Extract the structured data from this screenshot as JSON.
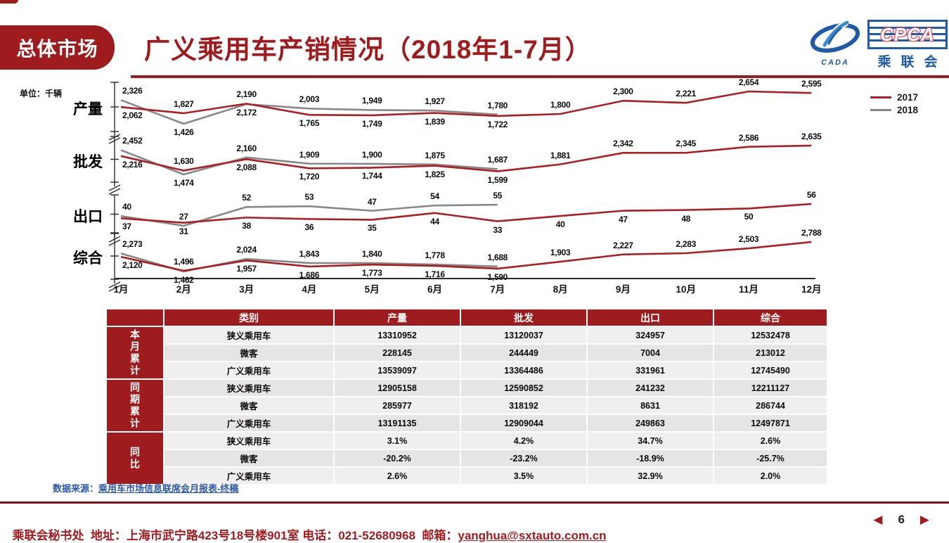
{
  "colors": {
    "brand": "#9E1B1E",
    "line_2017": "#AB1F24",
    "line_2018": "#878787",
    "link_blue": "#2B57A5",
    "logo_blue": "#1E5AA8"
  },
  "header": {
    "badge": "总体市场",
    "title": "广义乘用车产销情况（2018年1-7月）",
    "logo": {
      "cada": "CADA",
      "cpca": "CPCA",
      "cpca_cn": "乘联会"
    }
  },
  "chart_section": {
    "unit_label": "单位：千辆",
    "months": [
      "1月",
      "2月",
      "3月",
      "4月",
      "5月",
      "6月",
      "7月",
      "8月",
      "9月",
      "10月",
      "11月",
      "12月"
    ],
    "legend": [
      {
        "label": "2017"
      },
      {
        "label": "2018"
      }
    ]
  },
  "chart_data": [
    {
      "type": "line",
      "name": "产量",
      "unit": "千辆",
      "categories": [
        "1月",
        "2月",
        "3月",
        "4月",
        "5月",
        "6月",
        "7月",
        "8月",
        "9月",
        "10月",
        "11月",
        "12月"
      ],
      "series": [
        {
          "name": "2017",
          "values": [
            2062,
            1827,
            2190,
            1765,
            1749,
            1839,
            1722,
            1800,
            2300,
            2221,
            2654,
            2595
          ],
          "label_sides": [
            "below",
            "above",
            "above",
            "below",
            "below",
            "below",
            "below",
            "above",
            "above",
            "above",
            "above",
            "above"
          ]
        },
        {
          "name": "2018",
          "values": [
            2326,
            1426,
            2172,
            2003,
            1949,
            1927,
            1780
          ],
          "label_sides": [
            "above",
            "below",
            "below",
            "above",
            "above",
            "above",
            "above"
          ]
        }
      ]
    },
    {
      "type": "line",
      "name": "批发",
      "unit": "千辆",
      "categories": [
        "1月",
        "2月",
        "3月",
        "4月",
        "5月",
        "6月",
        "7月",
        "8月",
        "9月",
        "10月",
        "11月",
        "12月"
      ],
      "series": [
        {
          "name": "2017",
          "values": [
            2216,
            1630,
            2088,
            1720,
            1744,
            1825,
            1599,
            1881,
            2342,
            2345,
            2586,
            2635
          ],
          "label_sides": [
            "below",
            "above",
            "below",
            "below",
            "below",
            "below",
            "below",
            "above",
            "above",
            "above",
            "above",
            "above"
          ]
        },
        {
          "name": "2018",
          "values": [
            2452,
            1474,
            2160,
            1909,
            1900,
            1875,
            1687
          ],
          "label_sides": [
            "above",
            "below",
            "above",
            "above",
            "above",
            "above",
            "above"
          ]
        }
      ]
    },
    {
      "type": "line",
      "name": "出口",
      "unit": "千辆",
      "categories": [
        "1月",
        "2月",
        "3月",
        "4月",
        "5月",
        "6月",
        "7月",
        "8月",
        "9月",
        "10月",
        "11月",
        "12月"
      ],
      "series": [
        {
          "name": "2017",
          "values": [
            37,
            31,
            38,
            36,
            35,
            44,
            33,
            40,
            47,
            48,
            50,
            56
          ],
          "label_sides": [
            "below",
            "below",
            "below",
            "below",
            "below",
            "below",
            "below",
            "below",
            "below",
            "below",
            "below",
            "above"
          ]
        },
        {
          "name": "2018",
          "values": [
            40,
            27,
            52,
            53,
            47,
            54,
            55
          ],
          "label_sides": [
            "above",
            "above",
            "above",
            "above",
            "above",
            "above",
            "above"
          ]
        }
      ]
    },
    {
      "type": "line",
      "name": "综合",
      "unit": "千辆",
      "categories": [
        "1月",
        "2月",
        "3月",
        "4月",
        "5月",
        "6月",
        "7月",
        "8月",
        "9月",
        "10月",
        "11月",
        "12月"
      ],
      "series": [
        {
          "name": "2017",
          "values": [
            2120,
            1496,
            1957,
            1686,
            1773,
            1716,
            1590,
            1903,
            2227,
            2283,
            2503,
            2788
          ],
          "label_sides": [
            "below",
            "above",
            "below",
            "below",
            "below",
            "below",
            "below",
            "above",
            "above",
            "above",
            "above",
            "above"
          ]
        },
        {
          "name": "2018",
          "values": [
            2273,
            1462,
            2024,
            1843,
            1840,
            1778,
            1688
          ],
          "label_sides": [
            "above",
            "below",
            "above",
            "above",
            "above",
            "above",
            "above"
          ]
        }
      ]
    }
  ],
  "table": {
    "headers": [
      "类别",
      "产量",
      "批发",
      "出口",
      "综合"
    ],
    "groups": [
      {
        "label": "本月累计",
        "rows": [
          {
            "label": "狭义乘用车",
            "values": [
              "13310952",
              "13120037",
              "324957",
              "12532478"
            ]
          },
          {
            "label": "微客",
            "values": [
              "228145",
              "244449",
              "7004",
              "213012"
            ]
          },
          {
            "label": "广义乘用车",
            "values": [
              "13539097",
              "13364486",
              "331961",
              "12745490"
            ]
          }
        ]
      },
      {
        "label": "同期累计",
        "rows": [
          {
            "label": "狭义乘用车",
            "values": [
              "12905158",
              "12590852",
              "241232",
              "12211127"
            ]
          },
          {
            "label": "微客",
            "values": [
              "285977",
              "318192",
              "8631",
              "286744"
            ]
          },
          {
            "label": "广义乘用车",
            "values": [
              "13191135",
              "12909044",
              "249863",
              "12497871"
            ]
          }
        ]
      },
      {
        "label": "同比",
        "rows": [
          {
            "label": "狭义乘用车",
            "values": [
              "3.1%",
              "4.2%",
              "34.7%",
              "2.6%"
            ]
          },
          {
            "label": "微客",
            "values": [
              "-20.2%",
              "-23.2%",
              "-18.9%",
              "-25.7%"
            ]
          },
          {
            "label": "广义乘用车",
            "values": [
              "2.6%",
              "3.5%",
              "32.9%",
              "2.0%"
            ]
          }
        ]
      }
    ]
  },
  "datasource": {
    "prefix": "数据来源：",
    "link": "乘用车市场信息联席会月报表-终稿"
  },
  "footer": {
    "text": "乘联会秘书处  地址：上海市武宁路423号18号楼901室 电话：021-52680968  邮箱：",
    "email": "yanghua@sxtauto.com.cn",
    "page": "6",
    "prev_icon": "◀",
    "next_icon": "▶"
  }
}
